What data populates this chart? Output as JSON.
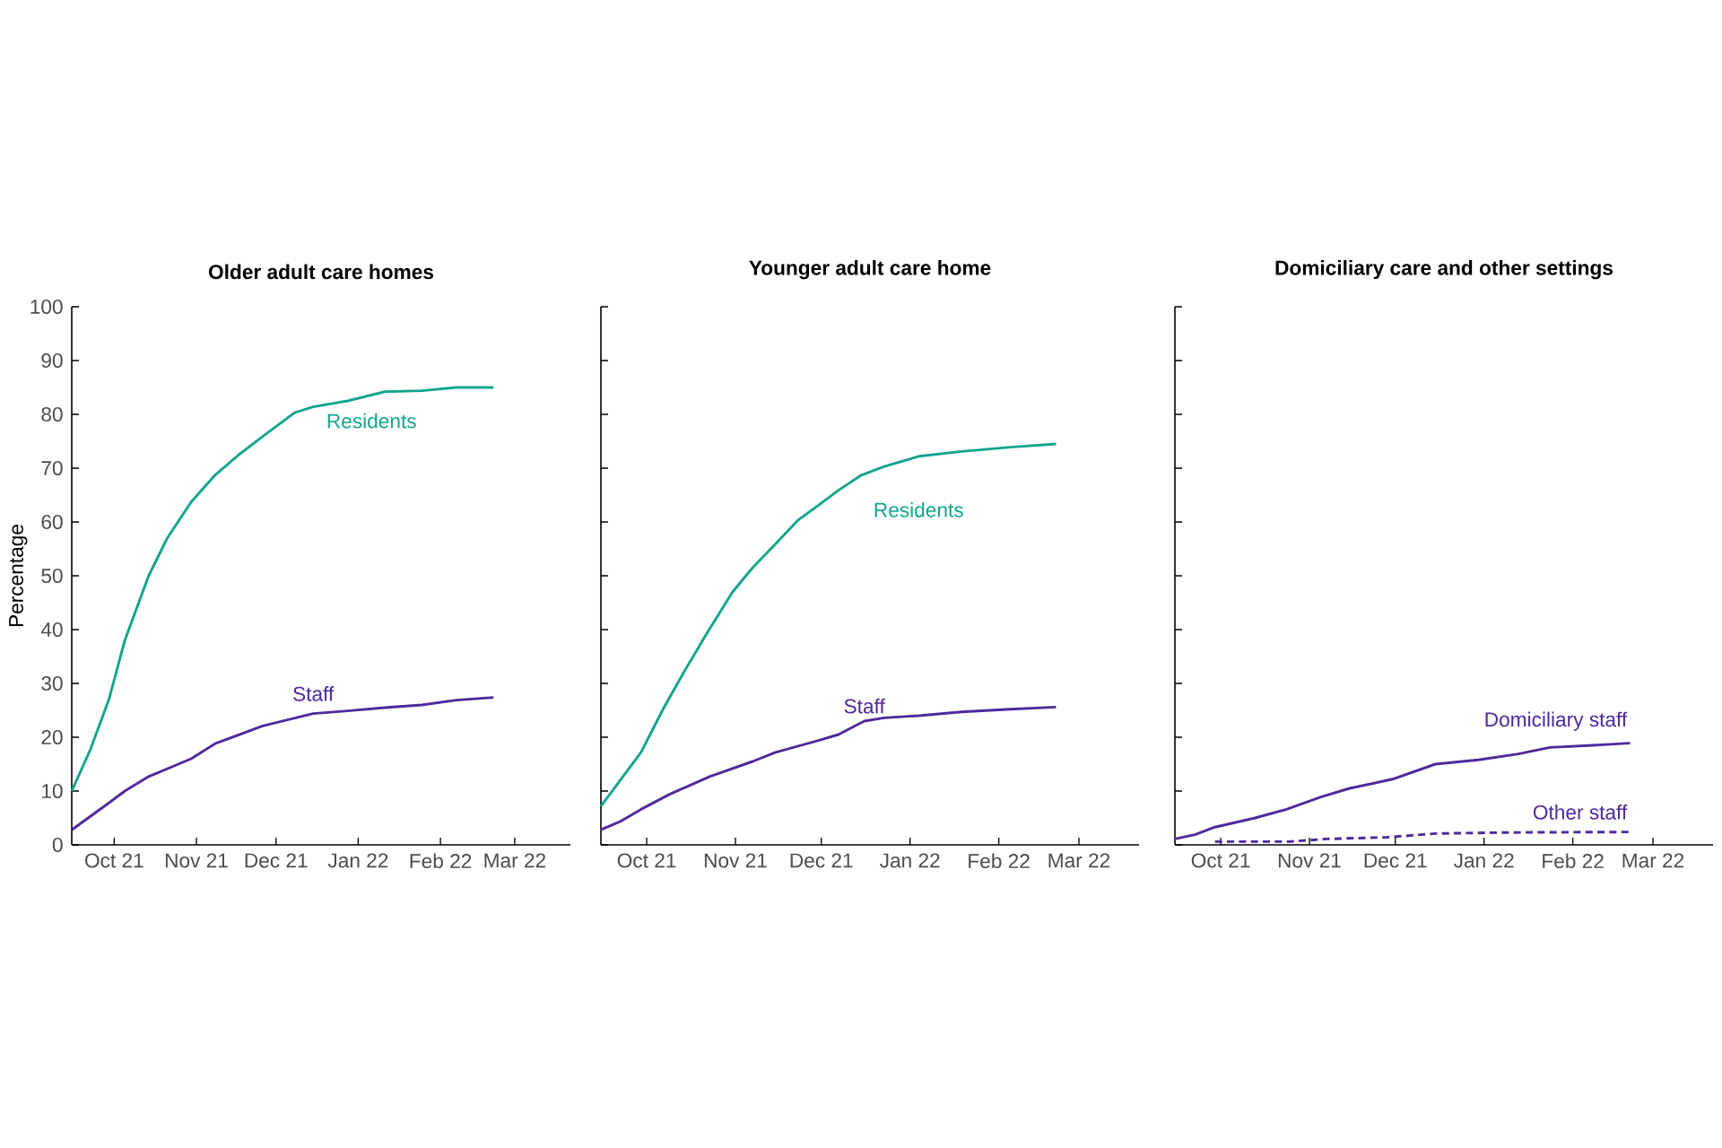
{
  "chart_data": [
    {
      "type": "line",
      "title": "Older adult care homes",
      "ylabel": "Percentage",
      "xlim": [
        "2021-09-15",
        "2022-03-22"
      ],
      "xticks": [
        {
          "value": "2021-10-01",
          "label": "Oct 21"
        },
        {
          "value": "2021-11-01",
          "label": "Nov 21"
        },
        {
          "value": "2021-12-01",
          "label": "Dec 21"
        },
        {
          "value": "2022-01-01",
          "label": "Jan 22"
        },
        {
          "value": "2022-02-01",
          "label": "Feb 22"
        },
        {
          "value": "2022-03-01",
          "label": "Mar 22"
        }
      ],
      "ylim": [
        0,
        100
      ],
      "yticks": [
        0,
        10,
        20,
        30,
        40,
        50,
        60,
        70,
        80,
        90,
        100
      ],
      "series": [
        {
          "name": "Residents",
          "color": "#12a58c",
          "x": [
            "2021-09-15",
            "2021-09-22",
            "2021-09-29",
            "2021-10-05",
            "2021-10-14",
            "2021-10-21",
            "2021-10-30",
            "2021-11-08",
            "2021-11-17",
            "2021-11-26",
            "2021-12-08",
            "2021-12-15",
            "2021-12-28",
            "2022-01-11",
            "2022-01-25",
            "2022-02-07",
            "2022-02-21"
          ],
          "values": [
            10,
            17.7,
            27,
            38,
            50,
            57,
            63.7,
            68.7,
            72.5,
            75.9,
            80.3,
            81.4,
            82.5,
            84.2,
            84.4,
            85,
            85
          ]
        },
        {
          "name": "Staff",
          "color": "#4e2a9a",
          "x": [
            "2021-09-15",
            "2021-09-29",
            "2021-10-05",
            "2021-10-14",
            "2021-10-30",
            "2021-11-08",
            "2021-11-26",
            "2021-12-15",
            "2021-12-28",
            "2022-01-11",
            "2022-01-25",
            "2022-02-07",
            "2022-02-21"
          ],
          "values": [
            2.8,
            7.8,
            10,
            12.7,
            16,
            18.8,
            22.1,
            24.4,
            24.9,
            25.5,
            26,
            26.9,
            27.4
          ]
        }
      ]
    },
    {
      "type": "line",
      "title": "Younger adult care home",
      "tick_labels": "x",
      "xlim": [
        "2021-09-15",
        "2022-03-22"
      ],
      "xticks": [
        {
          "value": "2021-10-01",
          "label": "Oct 21"
        },
        {
          "value": "2021-11-01",
          "label": "Nov 21"
        },
        {
          "value": "2021-12-01",
          "label": "Dec 21"
        },
        {
          "value": "2022-01-01",
          "label": "Jan 22"
        },
        {
          "value": "2022-02-01",
          "label": "Feb 22"
        },
        {
          "value": "2022-03-01",
          "label": "Mar 22"
        }
      ],
      "ylim": [
        0,
        100
      ],
      "yticks": [
        0,
        10,
        20,
        30,
        40,
        50,
        60,
        70,
        80,
        90,
        100
      ],
      "series": [
        {
          "name": "Residents",
          "color": "#12a58c",
          "x": [
            "2021-09-15",
            "2021-09-22",
            "2021-09-29",
            "2021-10-07",
            "2021-10-14",
            "2021-10-22",
            "2021-10-31",
            "2021-11-07",
            "2021-11-15",
            "2021-11-23",
            "2021-11-30",
            "2021-12-07",
            "2021-12-15",
            "2021-12-23",
            "2022-01-04",
            "2022-01-19",
            "2022-02-05",
            "2022-02-21"
          ],
          "values": [
            7.2,
            12.2,
            17.2,
            25.5,
            32.1,
            39.3,
            47,
            51.5,
            55.9,
            60.4,
            63.1,
            65.9,
            68.7,
            70.3,
            72.2,
            73.1,
            73.9,
            74.5
          ]
        },
        {
          "name": "Staff",
          "color": "#4e2a9a",
          "x": [
            "2021-09-15",
            "2021-09-22",
            "2021-09-29",
            "2021-10-09",
            "2021-10-23",
            "2021-11-07",
            "2021-11-15",
            "2021-11-30",
            "2021-12-07",
            "2021-12-16",
            "2021-12-23",
            "2022-01-04",
            "2022-01-19",
            "2022-02-05",
            "2022-02-21"
          ],
          "values": [
            2.8,
            4.4,
            6.6,
            9.4,
            12.7,
            15.5,
            17.2,
            19.4,
            20.5,
            23,
            23.6,
            24,
            24.7,
            25.2,
            25.6
          ]
        }
      ]
    },
    {
      "type": "line",
      "title": "Domiciliary care and other settings",
      "tick_labels": "x",
      "xlim": [
        "2021-09-15",
        "2022-03-22"
      ],
      "xticks": [
        {
          "value": "2021-10-01",
          "label": "Oct 21"
        },
        {
          "value": "2021-11-01",
          "label": "Nov 21"
        },
        {
          "value": "2021-12-01",
          "label": "Dec 21"
        },
        {
          "value": "2022-01-01",
          "label": "Jan 22"
        },
        {
          "value": "2022-02-01",
          "label": "Feb 22"
        },
        {
          "value": "2022-03-01",
          "label": "Mar 22"
        }
      ],
      "ylim": [
        0,
        100
      ],
      "yticks": [
        0,
        10,
        20,
        30,
        40,
        50,
        60,
        70,
        80,
        90,
        100
      ],
      "series": [
        {
          "name": "Domiciliary staff",
          "color": "#4e2a9a",
          "x": [
            "2021-09-15",
            "2021-09-22",
            "2021-09-29",
            "2021-10-13",
            "2021-10-24",
            "2021-11-05",
            "2021-11-15",
            "2021-11-30",
            "2021-12-15",
            "2021-12-30",
            "2022-01-13",
            "2022-01-24",
            "2022-02-08",
            "2022-02-21"
          ],
          "values": [
            1.1,
            1.9,
            3.3,
            5,
            6.6,
            8.9,
            10.5,
            12.2,
            15,
            15.8,
            16.9,
            18.1,
            18.5,
            18.9
          ]
        },
        {
          "name": "Other staff",
          "color": "#4e2a9a",
          "line_style": "dashed",
          "x": [
            "2021-09-29",
            "2021-10-25",
            "2021-11-07",
            "2021-11-28",
            "2021-12-15",
            "2022-01-09",
            "2022-02-21"
          ],
          "values": [
            0.6,
            0.6,
            1.1,
            1.4,
            2.1,
            2.3,
            2.4
          ]
        }
      ]
    }
  ]
}
